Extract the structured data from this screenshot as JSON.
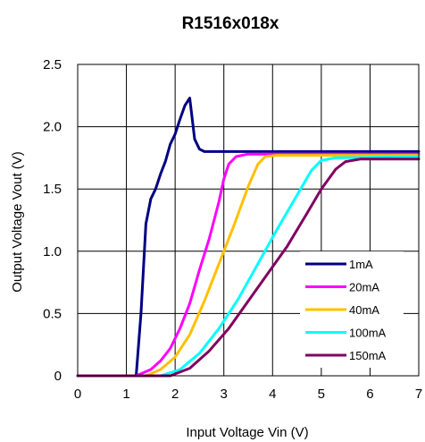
{
  "chart_data": {
    "type": "line",
    "title": "R1516x018x",
    "xlabel": "Input Voltage Vin (V)",
    "ylabel": "Output Voltage Vout (V)",
    "xlim": [
      0,
      7
    ],
    "ylim": [
      0,
      2.5
    ],
    "xticks": [
      "0",
      "1",
      "2",
      "3",
      "4",
      "5",
      "6",
      "7"
    ],
    "yticks": [
      "0",
      "0.5",
      "1.0",
      "1.5",
      "2.0",
      "2.5"
    ],
    "grid": true,
    "legend_position": "lower-right",
    "series": [
      {
        "name": "1mA",
        "color": "#000080",
        "points": [
          [
            0,
            0
          ],
          [
            1.2,
            0
          ],
          [
            1.3,
            0.5
          ],
          [
            1.4,
            1.22
          ],
          [
            1.5,
            1.42
          ],
          [
            1.6,
            1.5
          ],
          [
            1.7,
            1.62
          ],
          [
            1.8,
            1.72
          ],
          [
            1.9,
            1.86
          ],
          [
            2.0,
            1.94
          ],
          [
            2.1,
            2.06
          ],
          [
            2.2,
            2.17
          ],
          [
            2.3,
            2.23
          ],
          [
            2.4,
            1.9
          ],
          [
            2.5,
            1.82
          ],
          [
            2.6,
            1.8
          ],
          [
            7,
            1.8
          ]
        ]
      },
      {
        "name": "20mA",
        "color": "#ff00ff",
        "points": [
          [
            0,
            0
          ],
          [
            1.2,
            0
          ],
          [
            1.5,
            0.05
          ],
          [
            1.7,
            0.12
          ],
          [
            1.9,
            0.22
          ],
          [
            2.1,
            0.38
          ],
          [
            2.3,
            0.58
          ],
          [
            2.5,
            0.85
          ],
          [
            2.7,
            1.1
          ],
          [
            2.9,
            1.4
          ],
          [
            3.0,
            1.58
          ],
          [
            3.1,
            1.7
          ],
          [
            3.25,
            1.76
          ],
          [
            3.5,
            1.78
          ],
          [
            7,
            1.78
          ]
        ]
      },
      {
        "name": "40mA",
        "color": "#ffc000",
        "points": [
          [
            0,
            0
          ],
          [
            1.4,
            0
          ],
          [
            1.7,
            0.05
          ],
          [
            2.0,
            0.15
          ],
          [
            2.3,
            0.33
          ],
          [
            2.6,
            0.6
          ],
          [
            2.9,
            0.9
          ],
          [
            3.2,
            1.2
          ],
          [
            3.5,
            1.52
          ],
          [
            3.7,
            1.7
          ],
          [
            3.85,
            1.76
          ],
          [
            4.1,
            1.77
          ],
          [
            7,
            1.77
          ]
        ]
      },
      {
        "name": "100mA",
        "color": "#00ffff",
        "points": [
          [
            0,
            0
          ],
          [
            1.7,
            0
          ],
          [
            2.1,
            0.05
          ],
          [
            2.5,
            0.18
          ],
          [
            2.9,
            0.38
          ],
          [
            3.3,
            0.62
          ],
          [
            3.7,
            0.9
          ],
          [
            4.1,
            1.18
          ],
          [
            4.5,
            1.45
          ],
          [
            4.8,
            1.65
          ],
          [
            5.0,
            1.73
          ],
          [
            5.3,
            1.75
          ],
          [
            7,
            1.76
          ]
        ]
      },
      {
        "name": "150mA",
        "color": "#800060",
        "points": [
          [
            0,
            0
          ],
          [
            1.9,
            0
          ],
          [
            2.3,
            0.06
          ],
          [
            2.7,
            0.2
          ],
          [
            3.1,
            0.38
          ],
          [
            3.5,
            0.6
          ],
          [
            3.9,
            0.82
          ],
          [
            4.3,
            1.04
          ],
          [
            4.7,
            1.3
          ],
          [
            5.0,
            1.5
          ],
          [
            5.3,
            1.66
          ],
          [
            5.5,
            1.72
          ],
          [
            5.8,
            1.74
          ],
          [
            7,
            1.74
          ]
        ]
      }
    ]
  }
}
